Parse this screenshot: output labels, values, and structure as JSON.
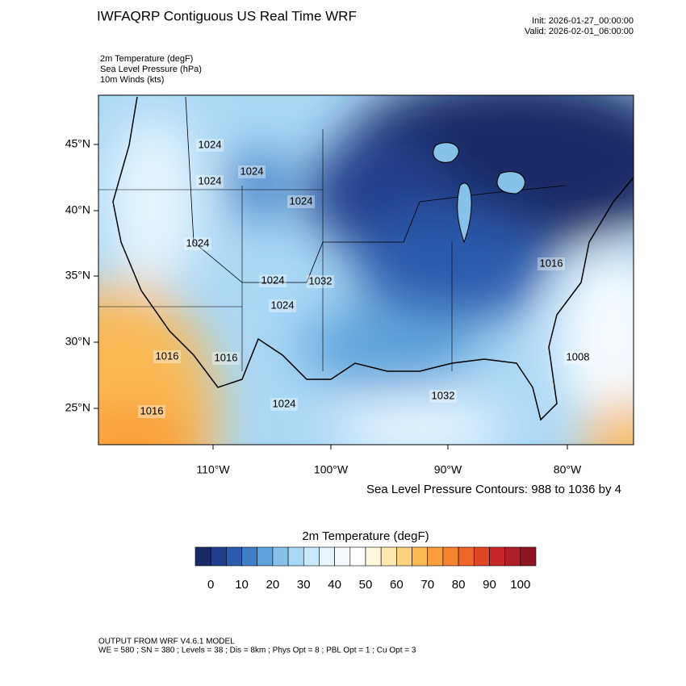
{
  "header": {
    "title": "IWFAQRP Contiguous US Real Time WRF",
    "init": "Init: 2026-01-27_00:00:00",
    "valid": "Valid: 2026-02-01_06:00:00"
  },
  "fields": [
    "2m Temperature   (degF)",
    "Sea Level Pressure   (hPa)",
    "10m Winds   (kts)"
  ],
  "map": {
    "lat_labels": [
      "45°N",
      "40°N",
      "35°N",
      "30°N",
      "25°N"
    ],
    "lon_labels": [
      "110°W",
      "100°W",
      "90°W",
      "80°W"
    ],
    "contour_labels": [
      "1024",
      "1024",
      "1024",
      "1024",
      "1024",
      "1024",
      "1032",
      "1024",
      "1016",
      "1016",
      "1016",
      "1024",
      "1032",
      "1008",
      "1016"
    ]
  },
  "contour_note": "Sea Level Pressure Contours: 988 to 1036 by 4",
  "colorbar": {
    "title": "2m Temperature  (degF)",
    "labels": [
      0,
      10,
      20,
      30,
      40,
      50,
      60,
      70,
      80,
      90,
      100
    ],
    "colors": [
      "#1b2a68",
      "#213f8c",
      "#2b5cad",
      "#3f7fc6",
      "#5fa3dc",
      "#86c1ea",
      "#a9d8f5",
      "#c9e8fa",
      "#e6f4fd",
      "#f7fbff",
      "#ffffff",
      "#fff8dc",
      "#fde9b0",
      "#fcd27f",
      "#fbb955",
      "#f99e3a",
      "#f58430",
      "#ef6527",
      "#e04525",
      "#c9262a",
      "#b01e2a",
      "#8c1622"
    ]
  },
  "footer": [
    "OUTPUT FROM WRF V4.6.1 MODEL",
    "WE = 580 ; SN = 380 ; Levels = 38 ; Dis = 8km ; Phys Opt = 8 ; PBL Opt = 1 ; Cu Opt = 3"
  ]
}
